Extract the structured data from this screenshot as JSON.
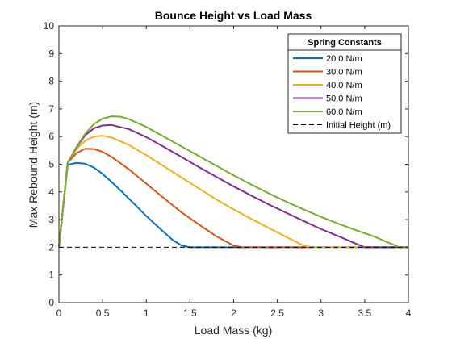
{
  "chart_data": {
    "type": "line",
    "title": "Bounce Height vs Load Mass",
    "xlabel": "Load Mass (kg)",
    "ylabel": "Max Rebound Height (m)",
    "xlim": [
      0,
      4
    ],
    "ylim": [
      0,
      10
    ],
    "xticks": [
      0,
      0.5,
      1,
      1.5,
      2,
      2.5,
      3,
      3.5,
      4
    ],
    "xtick_labels": [
      "0",
      "0.5",
      "1",
      "1.5",
      "2",
      "2.5",
      "3",
      "3.5",
      "4"
    ],
    "yticks": [
      0,
      1,
      2,
      3,
      4,
      5,
      6,
      7,
      8,
      9,
      10
    ],
    "ytick_labels": [
      "0",
      "1",
      "2",
      "3",
      "4",
      "5",
      "6",
      "7",
      "8",
      "9",
      "10"
    ],
    "grid": false,
    "legend": {
      "title": "Spring Constants",
      "location": "top-right"
    },
    "series": [
      {
        "name": "20.0 N/m",
        "color": "#0072BD",
        "dashed": false,
        "x": [
          0,
          0.1,
          0.2,
          0.3,
          0.4,
          0.5,
          0.6,
          0.7,
          0.8,
          0.9,
          1.0,
          1.1,
          1.2,
          1.3,
          1.4,
          1.5,
          1.6,
          2.0,
          2.5,
          3.0,
          3.5,
          4.0
        ],
        "y": [
          2.0,
          4.98,
          5.05,
          5.02,
          4.88,
          4.65,
          4.37,
          4.07,
          3.76,
          3.45,
          3.13,
          2.84,
          2.55,
          2.27,
          2.07,
          2.0,
          2.0,
          2.0,
          2.0,
          2.0,
          2.0,
          2.0
        ]
      },
      {
        "name": "30.0 N/m",
        "color": "#D95319",
        "dashed": false,
        "x": [
          0,
          0.1,
          0.2,
          0.3,
          0.4,
          0.5,
          0.6,
          0.8,
          1.0,
          1.2,
          1.4,
          1.6,
          1.8,
          2.0,
          2.1,
          2.2,
          2.5,
          3.0,
          3.5,
          4.0
        ],
        "y": [
          2.0,
          5.05,
          5.4,
          5.56,
          5.55,
          5.45,
          5.27,
          4.82,
          4.3,
          3.78,
          3.27,
          2.83,
          2.4,
          2.06,
          2.0,
          2.0,
          2.0,
          2.0,
          2.0,
          2.0
        ]
      },
      {
        "name": "40.0 N/m",
        "color": "#EDB120",
        "dashed": false,
        "x": [
          0,
          0.1,
          0.2,
          0.3,
          0.4,
          0.5,
          0.6,
          0.8,
          1.0,
          1.2,
          1.4,
          1.6,
          1.8,
          2.0,
          2.2,
          2.4,
          2.6,
          2.8,
          2.9,
          3.0,
          3.5,
          4.0
        ],
        "y": [
          2.0,
          5.05,
          5.55,
          5.85,
          6.0,
          6.03,
          5.97,
          5.7,
          5.33,
          4.93,
          4.53,
          4.13,
          3.73,
          3.37,
          3.03,
          2.7,
          2.38,
          2.06,
          2.0,
          2.0,
          2.0,
          2.0
        ]
      },
      {
        "name": "50.0 N/m",
        "color": "#7E2F8E",
        "dashed": false,
        "x": [
          0,
          0.1,
          0.2,
          0.3,
          0.4,
          0.5,
          0.6,
          0.8,
          1.0,
          1.2,
          1.4,
          1.6,
          1.8,
          2.0,
          2.2,
          2.4,
          2.6,
          2.8,
          3.0,
          3.2,
          3.4,
          3.5,
          3.6,
          4.0
        ],
        "y": [
          2.0,
          5.05,
          5.6,
          6.05,
          6.3,
          6.4,
          6.42,
          6.27,
          5.98,
          5.63,
          5.27,
          4.9,
          4.55,
          4.2,
          3.87,
          3.55,
          3.25,
          2.95,
          2.66,
          2.4,
          2.13,
          2.0,
          2.0,
          2.0
        ]
      },
      {
        "name": "60.0 N/m",
        "color": "#77AC30",
        "dashed": false,
        "x": [
          0,
          0.1,
          0.2,
          0.3,
          0.4,
          0.5,
          0.6,
          0.7,
          0.8,
          1.0,
          1.2,
          1.4,
          1.6,
          1.8,
          2.0,
          2.2,
          2.4,
          2.6,
          2.8,
          3.0,
          3.2,
          3.4,
          3.6,
          3.8,
          3.9,
          4.0
        ],
        "y": [
          2.0,
          5.05,
          5.62,
          6.1,
          6.45,
          6.65,
          6.73,
          6.72,
          6.63,
          6.35,
          6.0,
          5.65,
          5.3,
          4.95,
          4.6,
          4.27,
          3.95,
          3.65,
          3.37,
          3.1,
          2.85,
          2.62,
          2.4,
          2.13,
          2.0,
          2.0
        ]
      },
      {
        "name": "Initial Height (m)",
        "color": "#000000",
        "dashed": true,
        "x": [
          0,
          4
        ],
        "y": [
          2.0,
          2.0
        ]
      }
    ]
  }
}
